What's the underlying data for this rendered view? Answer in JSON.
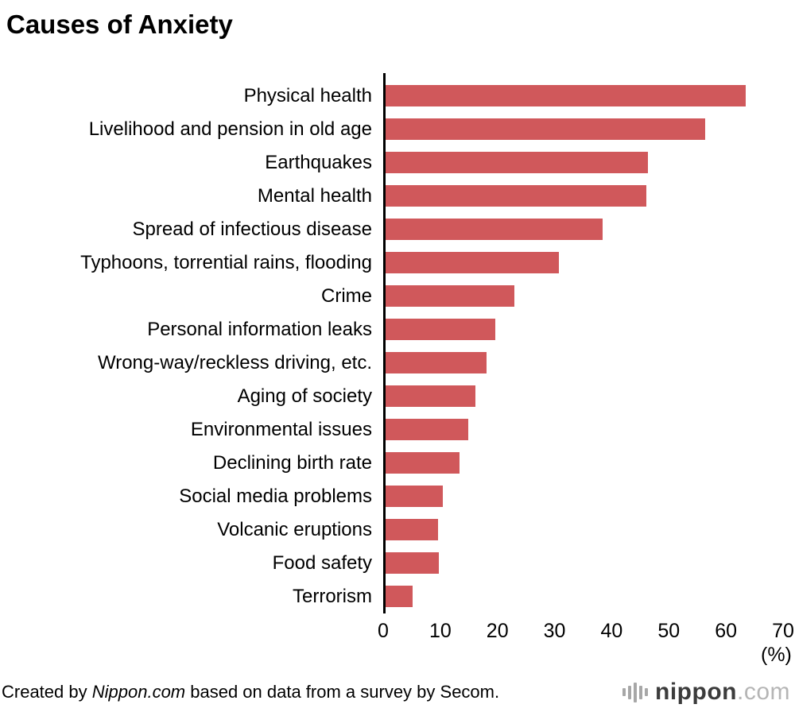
{
  "title": "Causes of Anxiety",
  "chart_data": {
    "type": "bar",
    "orientation": "horizontal",
    "title": "Causes of Anxiety",
    "categories": [
      "Physical health",
      "Livelihood and pension in old age",
      "Earthquakes",
      "Mental health",
      "Spread of infectious disease",
      "Typhoons, torrential rains, flooding",
      "Crime",
      "Personal information leaks",
      "Wrong-way/reckless driving, etc.",
      "Aging of society",
      "Environmental issues",
      "Declining birth rate",
      "Social media problems",
      "Volcanic eruptions",
      "Food safety",
      "Terrorism"
    ],
    "values": [
      63.4,
      56.4,
      46.3,
      46.1,
      38.4,
      30.7,
      23.0,
      19.6,
      18.1,
      16.1,
      14.9,
      13.4,
      10.4,
      9.6,
      9.8,
      5.1
    ],
    "xlabel": "(%)",
    "xlim": [
      0,
      70
    ],
    "xticks": [
      0,
      10,
      20,
      30,
      40,
      50,
      60,
      70
    ],
    "bar_color": "#d0585b",
    "axis_color": "#000000",
    "grid": false,
    "legend": false
  },
  "footer": {
    "credit_prefix": "Created by ",
    "credit_brand": "Nippon.com",
    "credit_suffix": " based on data from a survey by Secom.",
    "logo_text_bold": "nippon",
    "logo_text_light": ".com"
  }
}
